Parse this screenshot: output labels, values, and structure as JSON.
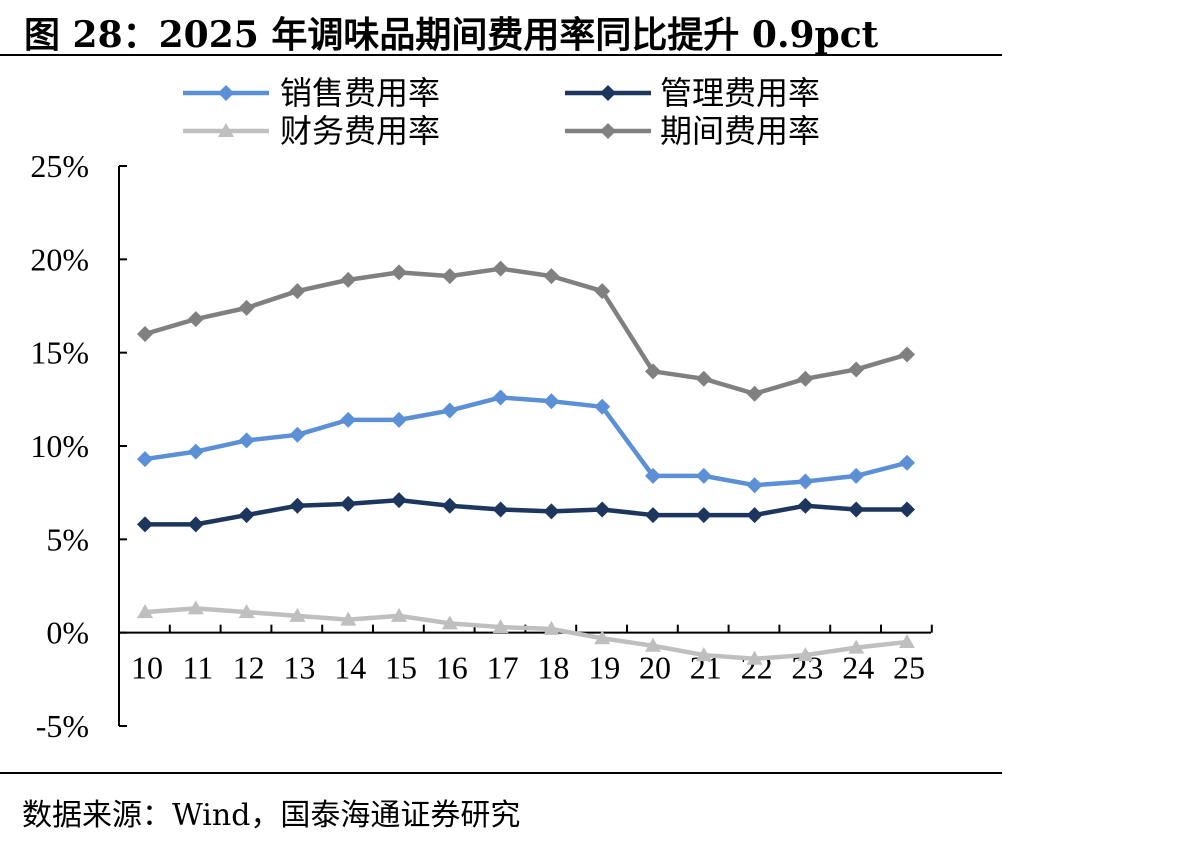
{
  "title": "图 28：2025 年调味品期间费用率同比提升 0.9pct",
  "source": "数据来源：Wind，国泰海通证券研究",
  "chart_data": {
    "type": "line",
    "categories": [
      "10",
      "11",
      "12",
      "13",
      "14",
      "15",
      "16",
      "17",
      "18",
      "19",
      "20",
      "21",
      "22",
      "23",
      "24",
      "25"
    ],
    "ylim": [
      -5,
      25
    ],
    "yticks": [
      "-5%",
      "0%",
      "5%",
      "10%",
      "15%",
      "20%",
      "25%"
    ],
    "ytick_values": [
      -5,
      0,
      5,
      10,
      15,
      20,
      25
    ],
    "grid": false,
    "legend_position": "top",
    "series": [
      {
        "name": "销售费用率",
        "color": "#5b8fd6",
        "marker": "diamond",
        "values": [
          9.3,
          9.7,
          10.3,
          10.6,
          11.4,
          11.4,
          11.9,
          12.6,
          12.4,
          12.1,
          8.4,
          8.4,
          7.9,
          8.1,
          8.4,
          9.1
        ]
      },
      {
        "name": "管理费用率",
        "color": "#1c365e",
        "marker": "diamond",
        "values": [
          5.8,
          5.8,
          6.3,
          6.8,
          6.9,
          7.1,
          6.8,
          6.6,
          6.5,
          6.6,
          6.3,
          6.3,
          6.3,
          6.8,
          6.6,
          6.6
        ]
      },
      {
        "name": "财务费用率",
        "color": "#bfbfbf",
        "marker": "triangle",
        "values": [
          1.1,
          1.3,
          1.1,
          0.9,
          0.7,
          0.9,
          0.5,
          0.3,
          0.2,
          -0.3,
          -0.7,
          -1.2,
          -1.4,
          -1.2,
          -0.8,
          -0.5
        ]
      },
      {
        "name": "期间费用率",
        "color": "#808080",
        "marker": "diamond",
        "values": [
          16.0,
          16.8,
          17.4,
          18.3,
          18.9,
          19.3,
          19.1,
          19.5,
          19.1,
          18.3,
          14.0,
          13.6,
          12.8,
          13.6,
          14.1,
          14.9
        ]
      }
    ]
  }
}
